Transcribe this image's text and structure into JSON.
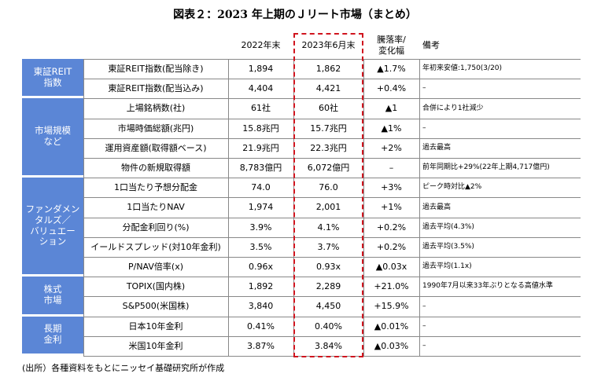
{
  "title": "図表２：2023 年上期のＪリート市場（まとめ）",
  "header": [
    "2022年末",
    "2023年6月末",
    "騰落率/\n変化幅",
    "備考"
  ],
  "groups": [
    {
      "label": "東証REIT\n指数",
      "rows": [
        [
          "東証REIT指数(配当除き)",
          "1,894",
          "1,862",
          "▲1.7%",
          "年初来安値:1,750(3/20)"
        ],
        [
          "東証REIT指数(配当込み)",
          "4,404",
          "4,421",
          "+0.4%",
          "–"
        ]
      ]
    },
    {
      "label": "市場規模\nなど",
      "rows": [
        [
          "上場銘柄数(社)",
          "61社",
          "60社",
          "▲1",
          "合併により1社減少"
        ],
        [
          "市場時価総額(兆円)",
          "15.8兆円",
          "15.7兆円",
          "▲1%",
          "–"
        ],
        [
          "運用資産額(取得額ベース)",
          "21.9兆円",
          "22.3兆円",
          "+2%",
          "過去最高"
        ],
        [
          "物件の新規取得額",
          "8,783億円",
          "6,072億円",
          "–",
          "前年同期比+29%(22年上期4,717億円)"
        ]
      ]
    },
    {
      "label": "ファンダメン\nタルズ／\nバリュエー\nション",
      "rows": [
        [
          "1口当たり予想分配金",
          "74.0",
          "76.0",
          "+3%",
          "ピーク時対比▲2%"
        ],
        [
          "1口当たりNAV",
          "1,974",
          "2,001",
          "+1%",
          "過去最高"
        ],
        [
          "分配金利回り(%)",
          "3.9%",
          "4.1%",
          "+0.2%",
          "過去平均(4.3%)"
        ],
        [
          "イールドスプレッド(対10年金利)",
          "3.5%",
          "3.7%",
          "+0.2%",
          "過去平均(3.5%)"
        ],
        [
          "P/NAV倍率(x)",
          "0.96x",
          "0.93x",
          "▲0.03x",
          "過去平均(1.1x)"
        ]
      ]
    },
    {
      "label": "株式\n市場",
      "rows": [
        [
          "TOPIX(国内株)",
          "1,892",
          "2,289",
          "+21.0%",
          "1990年7月以来33年ぶりとなる高値水準"
        ],
        [
          "S&P500(米国株)",
          "3,840",
          "4,450",
          "+15.9%",
          "–"
        ]
      ]
    },
    {
      "label": "長期\n金利",
      "rows": [
        [
          "日本10年金利",
          "0.41%",
          "0.40%",
          "▲0.01%",
          "–"
        ],
        [
          "米国10年金利",
          "3.87%",
          "3.84%",
          "▲0.03%",
          "–"
        ]
      ]
    }
  ],
  "source": "(出所）各種資料をもとにニッセイ基礎研究所が作成"
}
